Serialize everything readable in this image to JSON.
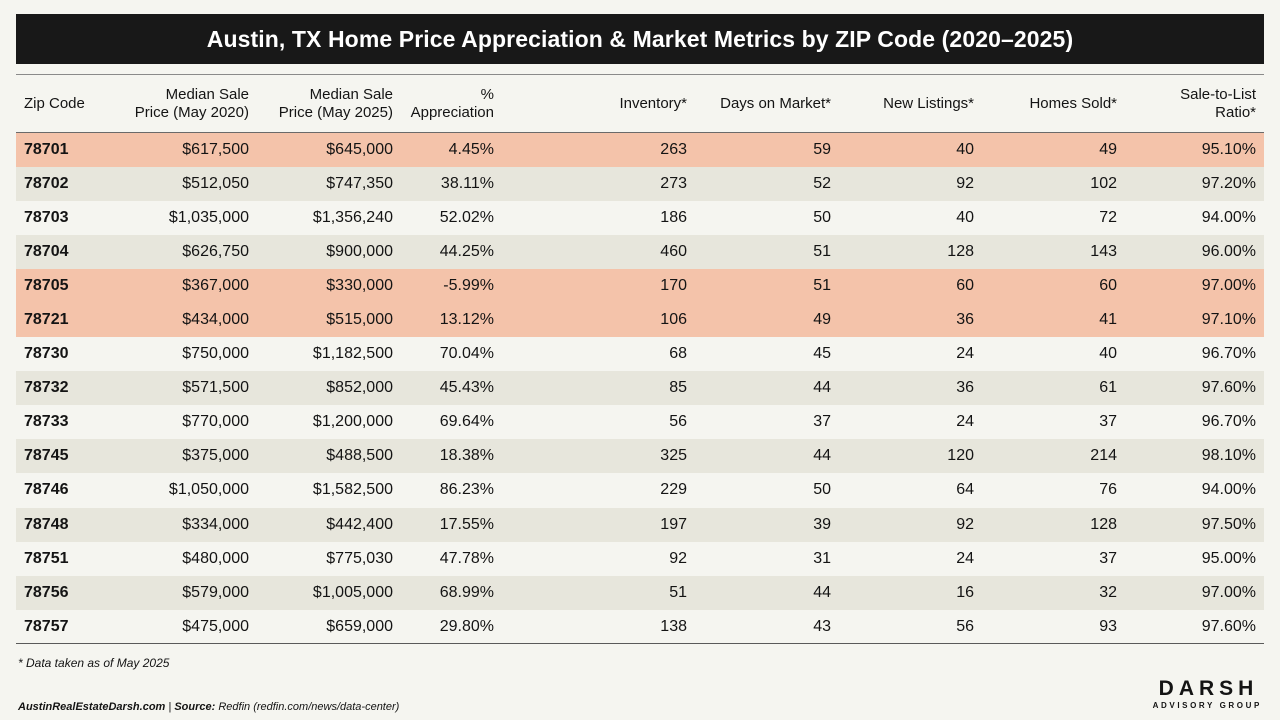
{
  "title": "Austin, TX Home Price Appreciation & Market Metrics by ZIP Code (2020–2025)",
  "headers": {
    "zip": "Zip Code",
    "price2020_l1": "Median Sale",
    "price2020_l2": "Price (May 2020)",
    "price2025_l1": "Median Sale",
    "price2025_l2": "Price (May 2025)",
    "appreciation": "% Appreciation",
    "inventory": "Inventory*",
    "dom": "Days on Market*",
    "new_listings": "New Listings*",
    "homes_sold": "Homes Sold*",
    "ratio_l1": "Sale-to-List",
    "ratio_l2": "Ratio*"
  },
  "highlight_color": "#f4c3aa",
  "rows": [
    {
      "zip": "78701",
      "p2020": "$617,500",
      "p2025": "$645,000",
      "appr": "4.45%",
      "inv": "263",
      "dom": "59",
      "new": "40",
      "sold": "49",
      "ratio": "95.10%",
      "highlight": true
    },
    {
      "zip": "78702",
      "p2020": "$512,050",
      "p2025": "$747,350",
      "appr": "38.11%",
      "inv": "273",
      "dom": "52",
      "new": "92",
      "sold": "102",
      "ratio": "97.20%",
      "highlight": false
    },
    {
      "zip": "78703",
      "p2020": "$1,035,000",
      "p2025": "$1,356,240",
      "appr": "52.02%",
      "inv": "186",
      "dom": "50",
      "new": "40",
      "sold": "72",
      "ratio": "94.00%",
      "highlight": false
    },
    {
      "zip": "78704",
      "p2020": "$626,750",
      "p2025": "$900,000",
      "appr": "44.25%",
      "inv": "460",
      "dom": "51",
      "new": "128",
      "sold": "143",
      "ratio": "96.00%",
      "highlight": false
    },
    {
      "zip": "78705",
      "p2020": "$367,000",
      "p2025": "$330,000",
      "appr": "-5.99%",
      "inv": "170",
      "dom": "51",
      "new": "60",
      "sold": "60",
      "ratio": "97.00%",
      "highlight": true
    },
    {
      "zip": "78721",
      "p2020": "$434,000",
      "p2025": "$515,000",
      "appr": "13.12%",
      "inv": "106",
      "dom": "49",
      "new": "36",
      "sold": "41",
      "ratio": "97.10%",
      "highlight": true
    },
    {
      "zip": "78730",
      "p2020": "$750,000",
      "p2025": "$1,182,500",
      "appr": "70.04%",
      "inv": "68",
      "dom": "45",
      "new": "24",
      "sold": "40",
      "ratio": "96.70%",
      "highlight": false
    },
    {
      "zip": "78732",
      "p2020": "$571,500",
      "p2025": "$852,000",
      "appr": "45.43%",
      "inv": "85",
      "dom": "44",
      "new": "36",
      "sold": "61",
      "ratio": "97.60%",
      "highlight": false
    },
    {
      "zip": "78733",
      "p2020": "$770,000",
      "p2025": "$1,200,000",
      "appr": "69.64%",
      "inv": "56",
      "dom": "37",
      "new": "24",
      "sold": "37",
      "ratio": "96.70%",
      "highlight": false
    },
    {
      "zip": "78745",
      "p2020": "$375,000",
      "p2025": "$488,500",
      "appr": "18.38%",
      "inv": "325",
      "dom": "44",
      "new": "120",
      "sold": "214",
      "ratio": "98.10%",
      "highlight": false
    },
    {
      "zip": "78746",
      "p2020": "$1,050,000",
      "p2025": "$1,582,500",
      "appr": "86.23%",
      "inv": "229",
      "dom": "50",
      "new": "64",
      "sold": "76",
      "ratio": "94.00%",
      "highlight": false
    },
    {
      "zip": "78748",
      "p2020": "$334,000",
      "p2025": "$442,400",
      "appr": "17.55%",
      "inv": "197",
      "dom": "39",
      "new": "92",
      "sold": "128",
      "ratio": "97.50%",
      "highlight": false
    },
    {
      "zip": "78751",
      "p2020": "$480,000",
      "p2025": "$775,030",
      "appr": "47.78%",
      "inv": "92",
      "dom": "31",
      "new": "24",
      "sold": "37",
      "ratio": "95.00%",
      "highlight": false
    },
    {
      "zip": "78756",
      "p2020": "$579,000",
      "p2025": "$1,005,000",
      "appr": "68.99%",
      "inv": "51",
      "dom": "44",
      "new": "16",
      "sold": "32",
      "ratio": "97.00%",
      "highlight": false
    },
    {
      "zip": "78757",
      "p2020": "$475,000",
      "p2025": "$659,000",
      "appr": "29.80%",
      "inv": "138",
      "dom": "43",
      "new": "56",
      "sold": "93",
      "ratio": "97.60%",
      "highlight": false
    }
  ],
  "note": "* Data taken as of May 2025",
  "footer": {
    "site": "AustinRealEstateDarsh.com",
    "separator": " | ",
    "source_label": "Source:",
    "source_text": " Redfin (redfin.com/news/data-center)"
  },
  "logo": {
    "main": "DARSH",
    "sub": "ADVISORY GROUP"
  }
}
